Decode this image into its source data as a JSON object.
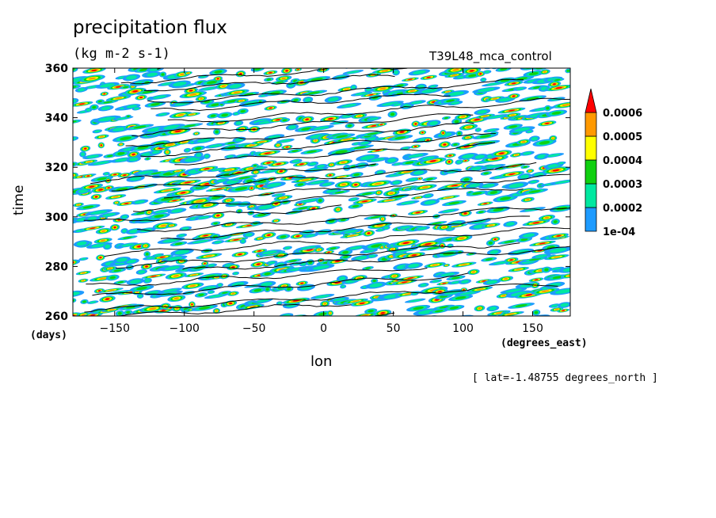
{
  "chart_data": {
    "type": "heatmap",
    "title": "precipitation flux",
    "units": "(kg m-2 s-1)",
    "run_name": "T39L48_mca_control",
    "xlabel": "lon",
    "xunit": "(degrees_east)",
    "ylabel": "time",
    "yunit": "(days)",
    "note": "[ lat=-1.48755 degrees_north ]",
    "xlim": [
      -180,
      177
    ],
    "ylim": [
      260,
      360
    ],
    "xticks": [
      -150,
      -100,
      -50,
      0,
      50,
      100,
      150
    ],
    "xtick_labels": [
      "−150",
      "−100",
      "−50",
      "0",
      "50",
      "100",
      "150"
    ],
    "yticks": [
      260,
      280,
      300,
      320,
      340,
      360
    ],
    "ytick_labels": [
      "260",
      "280",
      "300",
      "320",
      "340",
      "360"
    ],
    "colorbar": {
      "levels": [
        0.0001,
        0.0002,
        0.0003,
        0.0004,
        0.0005,
        0.0006
      ],
      "labels": [
        "1e-04",
        "0.0002",
        "0.0003",
        "0.0004",
        "0.0005",
        "0.0006"
      ],
      "colors": [
        "#1e9bff",
        "#00e8a0",
        "#10d010",
        "#ffff00",
        "#ff9900",
        "#ff0000"
      ],
      "extend": "max"
    },
    "contour_color": "#000000",
    "background": "#ffffff"
  }
}
